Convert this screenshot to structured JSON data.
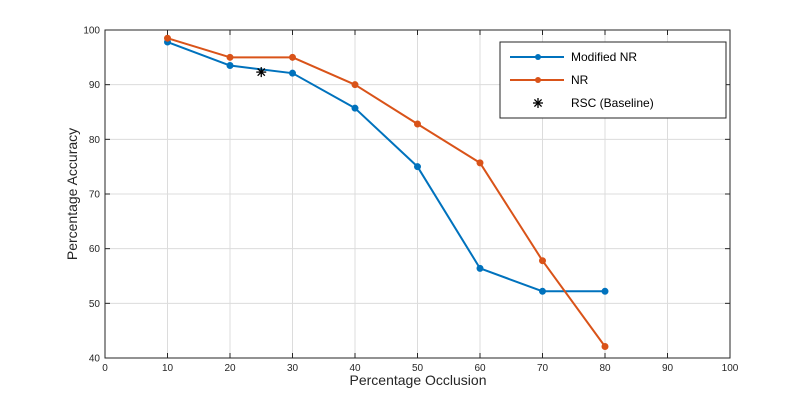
{
  "chart_data": {
    "type": "line",
    "title": "",
    "xlabel": "Percentage Occlusion",
    "ylabel": "Percentage Accuracy",
    "xlim": [
      0,
      100
    ],
    "ylim": [
      40,
      100
    ],
    "xticks": [
      0,
      10,
      20,
      30,
      40,
      50,
      60,
      70,
      80,
      90,
      100
    ],
    "yticks": [
      40,
      50,
      60,
      70,
      80,
      90,
      100
    ],
    "grid": true,
    "legend_position": "top-right",
    "series": [
      {
        "name": "Modified NR",
        "color": "#0072BD",
        "marker": "circle",
        "x": [
          10,
          20,
          30,
          40,
          50,
          60,
          70,
          80
        ],
        "y": [
          97.8,
          93.5,
          92.1,
          85.7,
          75.0,
          56.4,
          52.2,
          52.2
        ]
      },
      {
        "name": "NR",
        "color": "#D95319",
        "marker": "circle",
        "x": [
          10,
          20,
          30,
          40,
          50,
          60,
          70,
          80
        ],
        "y": [
          98.5,
          95.0,
          95.0,
          90.0,
          82.8,
          75.7,
          57.8,
          42.1
        ]
      },
      {
        "name": "RSC (Baseline)",
        "color": "#000000",
        "marker": "asterisk",
        "x": [
          25
        ],
        "y": [
          92.3
        ]
      }
    ]
  }
}
